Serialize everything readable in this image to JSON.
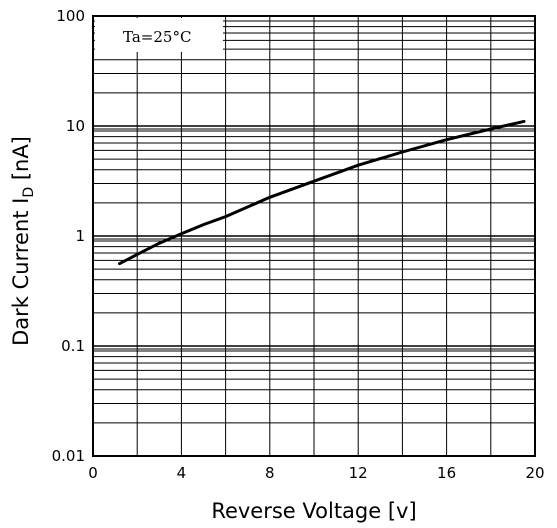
{
  "chart_data": {
    "type": "line",
    "title": "",
    "xlabel": "Reverse Voltage [v]",
    "ylabel": "Dark Current I",
    "ylabel_subscript": "D",
    "ylabel_unit": " [nA]",
    "annotation": "Ta=25°C",
    "xlim": [
      0,
      20
    ],
    "ylim": [
      0.01,
      100
    ],
    "yscale": "log",
    "x_ticks": [
      0,
      4,
      8,
      12,
      16,
      20
    ],
    "x_tick_labels": [
      "0",
      "4",
      "8",
      "12",
      "16",
      "20"
    ],
    "y_ticks": [
      0.01,
      0.1,
      1,
      10,
      100
    ],
    "y_tick_labels": [
      "0.01",
      "0.1",
      "1",
      "10",
      "100"
    ],
    "grid": true,
    "series": [
      {
        "x": [
          1.2,
          2,
          3,
          4,
          5,
          6,
          8,
          10,
          12,
          14,
          16,
          18,
          19.5
        ],
        "y": [
          0.56,
          0.68,
          0.86,
          1.05,
          1.27,
          1.5,
          2.25,
          3.15,
          4.4,
          5.8,
          7.5,
          9.4,
          11
        ]
      }
    ]
  }
}
